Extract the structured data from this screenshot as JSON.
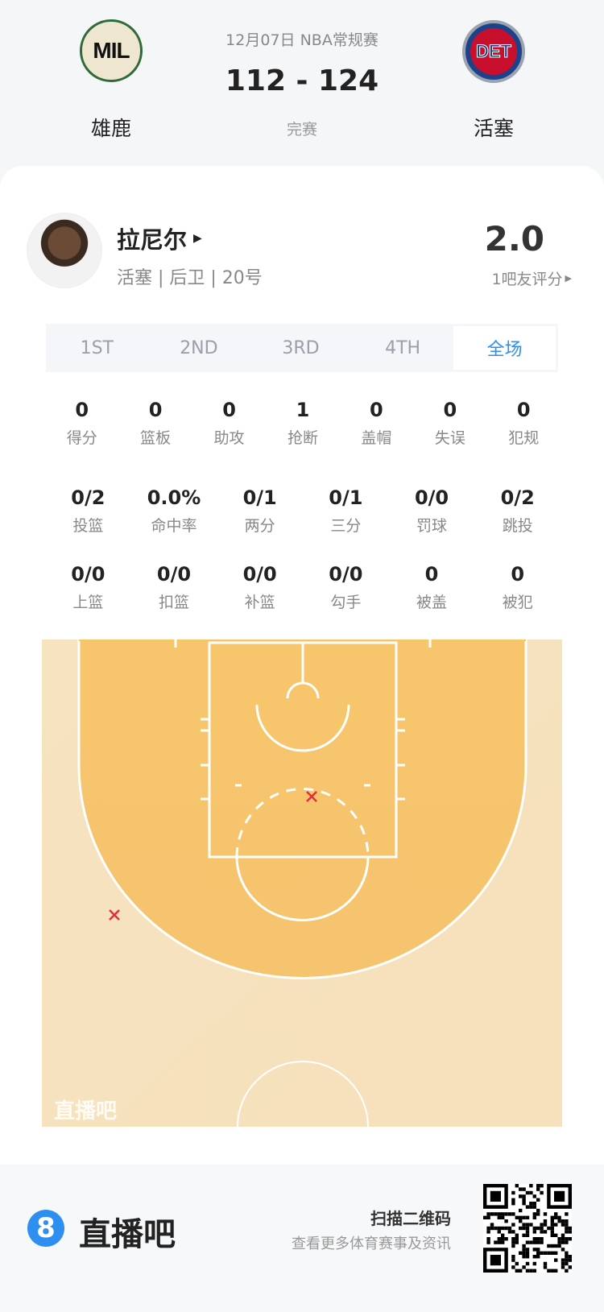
{
  "header": {
    "date_league": "12月07日 NBA常规赛",
    "score": "112 - 124",
    "status": "完赛",
    "home": {
      "abbr": "MIL",
      "name": "雄鹿"
    },
    "away": {
      "abbr": "DET",
      "name": "活塞"
    }
  },
  "player": {
    "name": "拉尼尔",
    "info": "活塞 | 后卫 | 20号",
    "rating": "2.0",
    "rating_label": "1吧友评分"
  },
  "tabs": [
    {
      "label": "1ST"
    },
    {
      "label": "2ND"
    },
    {
      "label": "3RD"
    },
    {
      "label": "4TH"
    },
    {
      "label": "全场",
      "active": true
    }
  ],
  "stats_row1": [
    {
      "v": "0",
      "l": "得分"
    },
    {
      "v": "0",
      "l": "篮板"
    },
    {
      "v": "0",
      "l": "助攻"
    },
    {
      "v": "1",
      "l": "抢断"
    },
    {
      "v": "0",
      "l": "盖帽"
    },
    {
      "v": "0",
      "l": "失误"
    },
    {
      "v": "0",
      "l": "犯规"
    }
  ],
  "stats_row2": [
    {
      "v": "0/2",
      "l": "投篮"
    },
    {
      "v": "0.0%",
      "l": "命中率"
    },
    {
      "v": "0/1",
      "l": "两分"
    },
    {
      "v": "0/1",
      "l": "三分"
    },
    {
      "v": "0/0",
      "l": "罚球"
    },
    {
      "v": "0/2",
      "l": "跳投"
    }
  ],
  "stats_row3": [
    {
      "v": "0/0",
      "l": "上篮"
    },
    {
      "v": "0/0",
      "l": "扣篮"
    },
    {
      "v": "0/0",
      "l": "补篮"
    },
    {
      "v": "0/0",
      "l": "勾手"
    },
    {
      "v": "0",
      "l": "被盖"
    },
    {
      "v": "0",
      "l": "被犯"
    }
  ],
  "court": {
    "watermark": "直播吧",
    "shots": [
      {
        "result": "miss",
        "zone": "paint-top"
      },
      {
        "result": "miss",
        "zone": "left-wing-three"
      }
    ],
    "miss_color": "#e0303c"
  },
  "footer": {
    "brand": "直播吧",
    "brand_number": "8",
    "qr_title": "扫描二维码",
    "qr_subtitle": "查看更多体育赛事及资讯",
    "accent": "#2f8ff0"
  }
}
